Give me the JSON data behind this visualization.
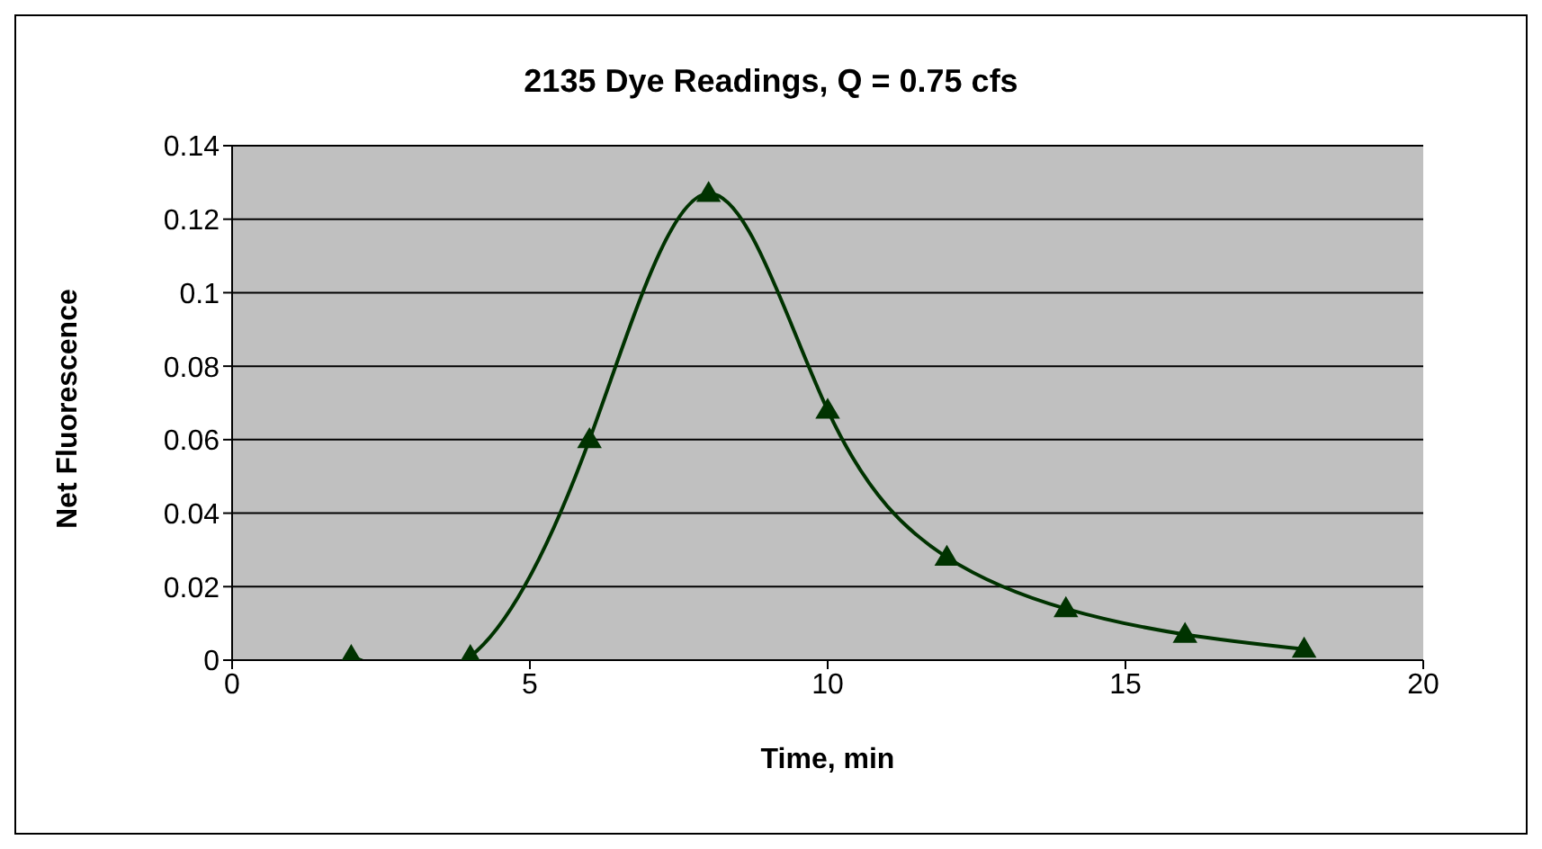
{
  "chart_data": {
    "type": "line",
    "title": "2135 Dye Readings, Q = 0.75 cfs",
    "xlabel": "Time, min",
    "ylabel": "Net Fluorescence",
    "x": [
      2,
      4,
      6,
      8,
      10,
      12,
      14,
      16,
      18
    ],
    "series": [
      {
        "color": "#003300",
        "values": [
          0.001,
          0.001,
          0.06,
          0.127,
          0.068,
          0.028,
          0.014,
          0.007,
          0.003
        ]
      }
    ],
    "xlim": [
      0,
      20
    ],
    "xticks": [
      0,
      5,
      10,
      15,
      20
    ],
    "ylim": [
      0,
      0.14
    ],
    "yticks": [
      0,
      0.02,
      0.04,
      0.06,
      0.08,
      0.1,
      0.12,
      0.14
    ],
    "grid": "y",
    "legend": false,
    "marker": "triangle",
    "line_style": "solid"
  }
}
